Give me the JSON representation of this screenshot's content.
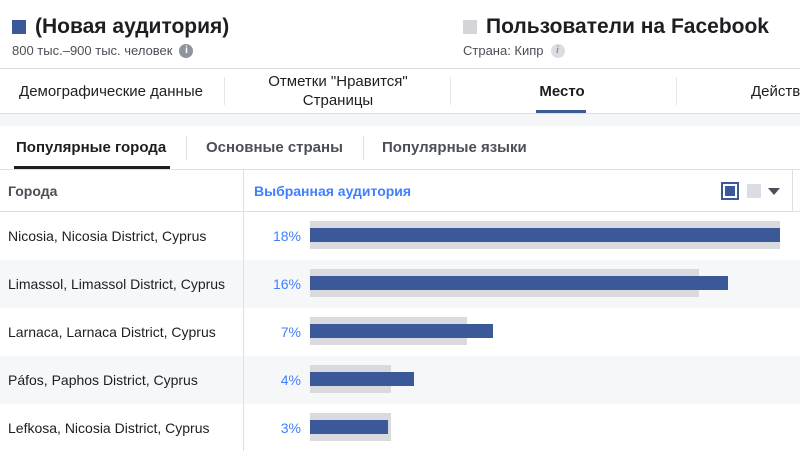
{
  "header": {
    "selected_audience": {
      "title": "(Новая аудитория)",
      "subtitle": "800 тыс.–900 тыс. человек",
      "color": "#3b5998"
    },
    "comparison_audience": {
      "title": "Пользователи на Facebook",
      "subtitle": "Страна: Кипр",
      "color": "#d3d5d9"
    }
  },
  "tabs": [
    {
      "label": "Демографические данные",
      "active": false
    },
    {
      "label": "Отметки \"Нравится\" Страницы",
      "active": false
    },
    {
      "label": "Место",
      "active": true
    },
    {
      "label": "Действ",
      "active": false
    }
  ],
  "subtabs": [
    {
      "label": "Популярные города",
      "active": true
    },
    {
      "label": "Основные страны",
      "active": false
    },
    {
      "label": "Популярные языки",
      "active": false
    }
  ],
  "table": {
    "col_city": "Города",
    "col_audience": "Выбранная аудитория",
    "rows": [
      {
        "city": "Nicosia, Nicosia District, Cyprus",
        "pct": "18%",
        "selected": 18,
        "all": 18
      },
      {
        "city": "Limassol, Limassol District, Cyprus",
        "pct": "16%",
        "selected": 16,
        "all": 14.9
      },
      {
        "city": "Larnaca, Larnaca District, Cyprus",
        "pct": "7%",
        "selected": 7,
        "all": 6
      },
      {
        "city": "Páfos, Paphos District, Cyprus",
        "pct": "4%",
        "selected": 4,
        "all": 3.1
      },
      {
        "city": "Lefkosa, Nicosia District, Cyprus",
        "pct": "3%",
        "selected": 3,
        "all": 3.1
      }
    ]
  },
  "colors": {
    "accent": "#3b5998",
    "link": "#4080ff",
    "comparison_bar": "#d8dade"
  }
}
